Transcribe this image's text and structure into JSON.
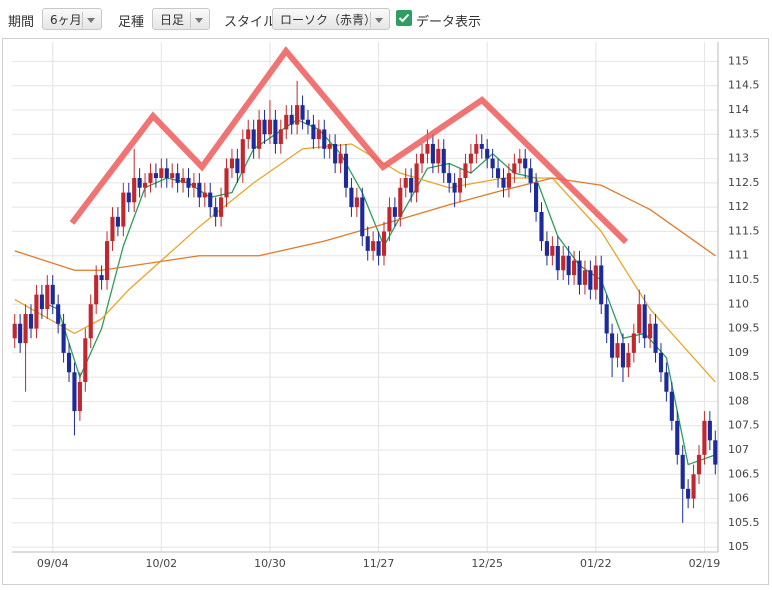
{
  "controls": {
    "period_label": "期間",
    "period": "6ヶ月",
    "bar_label": "足種",
    "bar": "日足",
    "style_label": "スタイル",
    "style": "ローソク（赤青）",
    "data_toggle": "データ表示"
  },
  "chart_data": {
    "type": "candlestick",
    "categories": [
      null,
      null,
      null,
      null,
      null,
      null,
      null,
      "09/04",
      null,
      null,
      null,
      null,
      null,
      null,
      null,
      null,
      null,
      null,
      null,
      null,
      null,
      null,
      null,
      null,
      null,
      null,
      null,
      "10/02",
      null,
      null,
      null,
      null,
      null,
      null,
      null,
      null,
      null,
      null,
      null,
      null,
      null,
      null,
      null,
      null,
      null,
      null,
      null,
      "10/30",
      null,
      null,
      null,
      null,
      null,
      null,
      null,
      null,
      null,
      null,
      null,
      null,
      null,
      null,
      null,
      null,
      null,
      null,
      null,
      "11/27",
      null,
      null,
      null,
      null,
      null,
      null,
      null,
      null,
      null,
      null,
      null,
      null,
      null,
      null,
      null,
      null,
      null,
      null,
      null,
      "12/25",
      null,
      null,
      null,
      null,
      null,
      null,
      null,
      null,
      null,
      null,
      null,
      null,
      null,
      null,
      null,
      null,
      null,
      null,
      null,
      "01/22",
      null,
      null,
      null,
      null,
      null,
      null,
      null,
      null,
      null,
      null,
      null,
      null,
      null,
      null,
      null,
      null,
      null,
      null,
      null,
      "02/19",
      null,
      null
    ],
    "open": [
      109.3,
      109.6,
      109.2,
      109.8,
      109.5,
      110.2,
      109.9,
      110.4,
      110.0,
      109.6,
      109.0,
      108.6,
      107.8,
      108.4,
      109.3,
      110.0,
      110.6,
      110.5,
      111.3,
      111.8,
      111.6,
      112.3,
      112.1,
      112.6,
      112.4,
      112.5,
      112.7,
      112.6,
      112.8,
      112.6,
      112.7,
      112.5,
      112.6,
      112.4,
      112.5,
      112.2,
      112.3,
      112.0,
      111.8,
      112.2,
      112.8,
      113.0,
      112.7,
      113.4,
      113.6,
      113.2,
      113.8,
      113.5,
      113.8,
      113.3,
      113.6,
      113.9,
      113.7,
      114.1,
      113.8,
      113.7,
      113.4,
      113.6,
      113.2,
      113.3,
      112.9,
      113.1,
      112.4,
      112.0,
      112.2,
      111.4,
      111.1,
      111.3,
      111.0,
      111.5,
      112.0,
      111.8,
      112.4,
      112.6,
      112.3,
      112.9,
      113.1,
      113.3,
      112.9,
      113.2,
      112.7,
      112.5,
      112.3,
      112.6,
      112.9,
      113.1,
      113.3,
      113.2,
      113.0,
      112.8,
      112.6,
      112.4,
      112.7,
      112.9,
      113.0,
      112.8,
      112.5,
      111.9,
      111.3,
      111.0,
      111.2,
      110.7,
      111.0,
      110.6,
      110.9,
      110.4,
      110.7,
      110.3,
      110.8,
      110.0,
      109.4,
      108.9,
      109.2,
      108.7,
      109.0,
      109.4,
      110.0,
      109.3,
      109.6,
      109.0,
      108.6,
      108.2,
      107.6,
      106.9,
      106.2,
      106.0,
      106.5,
      106.9,
      107.6,
      107.2
    ],
    "high": [
      109.8,
      109.8,
      110.0,
      110.0,
      110.4,
      110.4,
      110.6,
      110.6,
      110.2,
      109.8,
      109.2,
      108.8,
      108.6,
      109.5,
      110.2,
      110.8,
      110.8,
      111.5,
      112.0,
      112.0,
      112.5,
      112.5,
      113.2,
      112.8,
      112.7,
      112.9,
      112.9,
      113.0,
      113.0,
      112.9,
      112.9,
      112.8,
      112.8,
      112.7,
      112.7,
      112.5,
      112.5,
      112.2,
      112.4,
      113.0,
      113.2,
      113.2,
      113.6,
      113.8,
      113.8,
      114.0,
      114.0,
      114.2,
      114.0,
      113.8,
      114.1,
      114.1,
      114.6,
      114.3,
      114.0,
      113.9,
      113.8,
      113.8,
      113.5,
      113.5,
      113.3,
      113.3,
      112.6,
      112.4,
      112.4,
      111.6,
      111.5,
      111.5,
      111.7,
      112.2,
      112.2,
      112.6,
      112.8,
      112.8,
      113.1,
      113.3,
      113.6,
      113.5,
      113.4,
      113.4,
      112.9,
      112.7,
      112.8,
      113.1,
      113.3,
      113.5,
      113.5,
      113.4,
      113.2,
      113.0,
      112.8,
      112.9,
      113.1,
      113.2,
      113.2,
      113.0,
      112.7,
      112.1,
      111.5,
      111.4,
      111.4,
      111.2,
      111.2,
      111.1,
      111.1,
      110.9,
      110.9,
      111.0,
      111.0,
      110.2,
      109.6,
      109.4,
      109.4,
      109.2,
      109.6,
      110.3,
      110.2,
      109.8,
      109.8,
      109.2,
      108.8,
      108.4,
      107.8,
      107.1,
      106.4,
      106.7,
      107.1,
      107.8,
      107.8,
      107.4
    ],
    "low": [
      109.1,
      109.0,
      108.2,
      109.3,
      109.3,
      109.7,
      109.7,
      109.8,
      109.4,
      108.8,
      108.4,
      107.3,
      107.6,
      108.2,
      109.1,
      109.8,
      110.3,
      110.3,
      111.1,
      111.4,
      111.4,
      111.9,
      111.9,
      112.2,
      112.2,
      112.3,
      112.4,
      112.4,
      112.4,
      112.4,
      112.3,
      112.3,
      112.2,
      112.2,
      112.0,
      112.0,
      111.8,
      111.6,
      111.6,
      112.0,
      112.6,
      112.5,
      112.5,
      113.2,
      113.0,
      113.0,
      113.3,
      113.3,
      113.1,
      113.1,
      113.4,
      113.5,
      113.5,
      113.6,
      113.5,
      113.2,
      113.2,
      113.0,
      113.0,
      112.7,
      112.7,
      112.2,
      111.8,
      111.8,
      111.2,
      110.9,
      110.9,
      110.8,
      110.8,
      111.3,
      111.6,
      111.6,
      112.2,
      112.1,
      112.1,
      112.7,
      112.9,
      112.7,
      112.7,
      112.5,
      112.3,
      112.0,
      112.1,
      112.4,
      112.7,
      112.9,
      113.0,
      112.8,
      112.6,
      112.4,
      112.2,
      112.2,
      112.5,
      112.7,
      112.6,
      112.3,
      111.7,
      111.1,
      110.8,
      110.8,
      110.5,
      110.5,
      110.4,
      110.4,
      110.2,
      110.2,
      110.1,
      110.1,
      109.8,
      109.2,
      108.5,
      108.7,
      108.4,
      108.5,
      108.8,
      109.2,
      109.1,
      109.1,
      108.8,
      108.4,
      108.0,
      107.4,
      106.7,
      105.5,
      105.8,
      105.8,
      106.3,
      106.7,
      107.0,
      106.5
    ],
    "close": [
      109.6,
      109.2,
      109.8,
      109.5,
      110.2,
      109.9,
      110.4,
      110.0,
      109.6,
      109.0,
      108.6,
      107.8,
      108.4,
      109.3,
      110.0,
      110.6,
      110.5,
      111.3,
      111.8,
      111.6,
      112.3,
      112.1,
      112.6,
      112.4,
      112.5,
      112.7,
      112.6,
      112.8,
      112.6,
      112.7,
      112.5,
      112.6,
      112.4,
      112.5,
      112.2,
      112.3,
      112.0,
      111.8,
      112.2,
      112.8,
      113.0,
      112.7,
      113.4,
      113.6,
      113.2,
      113.8,
      113.5,
      113.8,
      113.3,
      113.6,
      113.9,
      113.7,
      114.1,
      113.8,
      113.7,
      113.4,
      113.6,
      113.2,
      113.3,
      112.9,
      113.1,
      112.4,
      112.0,
      112.2,
      111.4,
      111.1,
      111.3,
      111.0,
      111.5,
      112.0,
      111.8,
      112.4,
      112.6,
      112.3,
      112.9,
      113.1,
      113.3,
      112.9,
      113.2,
      112.7,
      112.5,
      112.3,
      112.6,
      112.9,
      113.1,
      113.3,
      113.2,
      113.0,
      112.8,
      112.6,
      112.4,
      112.7,
      112.9,
      113.0,
      112.8,
      112.5,
      111.9,
      111.3,
      111.0,
      111.2,
      110.7,
      111.0,
      110.6,
      110.9,
      110.4,
      110.7,
      110.3,
      110.8,
      110.0,
      109.4,
      108.9,
      109.2,
      108.7,
      109.0,
      109.4,
      110.0,
      109.3,
      109.6,
      109.0,
      108.6,
      108.2,
      107.6,
      106.9,
      106.2,
      106.0,
      106.5,
      106.9,
      107.6,
      107.2,
      106.7
    ],
    "up_color": "#c0282d",
    "down_color": "#1c2a9a",
    "overlays": [
      {
        "color": "#2e9e5b",
        "x": [
          6,
          8,
          12,
          16,
          20,
          24,
          28,
          32,
          36,
          40,
          44,
          48,
          52,
          56,
          60,
          64,
          68,
          72,
          76,
          80,
          84,
          88,
          92,
          96,
          100,
          104,
          108,
          112,
          116,
          120,
          124,
          129
        ],
        "values": [
          110.0,
          109.9,
          108.5,
          109.5,
          111.2,
          112.4,
          112.6,
          112.5,
          112.2,
          112.3,
          113.2,
          113.5,
          113.8,
          113.6,
          113.1,
          112.3,
          111.2,
          112.0,
          112.8,
          112.9,
          112.7,
          113.1,
          112.7,
          112.6,
          111.4,
          110.8,
          110.5,
          109.3,
          109.4,
          108.9,
          106.7,
          106.9
        ]
      },
      {
        "color": "#e8a628",
        "x": [
          0,
          11,
          16,
          21,
          34,
          44,
          53,
          62,
          71,
          80,
          90,
          99,
          108,
          117,
          129
        ],
        "values": [
          110.1,
          109.4,
          109.7,
          110.3,
          111.6,
          112.5,
          113.2,
          113.3,
          112.7,
          112.4,
          112.6,
          112.6,
          111.5,
          109.9,
          108.4
        ]
      },
      {
        "color": "#e07a2a",
        "x": [
          0,
          11,
          16,
          34,
          45,
          57,
          71,
          80,
          90,
          99,
          108,
          117,
          129
        ],
        "values": [
          111.1,
          110.7,
          110.7,
          111.0,
          111.0,
          111.3,
          111.75,
          112.05,
          112.35,
          112.6,
          112.45,
          111.95,
          111.0
        ]
      }
    ],
    "ylim": [
      104.9,
      115.4
    ],
    "yticks": [
      105,
      105.5,
      106,
      106.5,
      107,
      107.5,
      108,
      108.5,
      109,
      109.5,
      110,
      110.5,
      111,
      111.5,
      112,
      112.5,
      113,
      113.5,
      114,
      114.5,
      115
    ],
    "grid": true
  }
}
